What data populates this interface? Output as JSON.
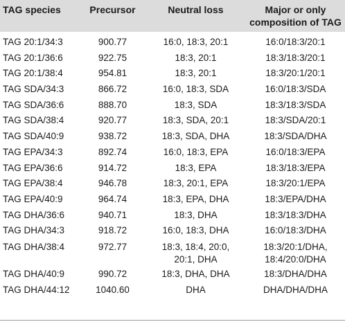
{
  "columns": [
    "TAG species",
    "Precursor",
    "Neutral loss",
    "Major or only composition of TAG"
  ],
  "header_c4_line1": "Major or only",
  "header_c4_line2": "composition of TAG",
  "rows": [
    {
      "species": "TAG 20:1/34:3",
      "precursor": "900.77",
      "loss": "16:0, 18:3, 20:1",
      "composition": "16:0/18:3/20:1"
    },
    {
      "species": "TAG 20:1/36:6",
      "precursor": "922.75",
      "loss": "18:3, 20:1",
      "composition": "18:3/18:3/20:1"
    },
    {
      "species": "TAG 20:1/38:4",
      "precursor": "954.81",
      "loss": "18:3, 20:1",
      "composition": "18:3/20:1/20:1"
    },
    {
      "species": "TAG SDA/34:3",
      "precursor": "866.72",
      "loss": "16:0, 18:3, SDA",
      "composition": "16:0/18:3/SDA"
    },
    {
      "species": "TAG SDA/36:6",
      "precursor": "888.70",
      "loss": "18:3, SDA",
      "composition": "18:3/18:3/SDA"
    },
    {
      "species": "TAG SDA/38:4",
      "precursor": "920.77",
      "loss": "18:3, SDA, 20:1",
      "composition": "18:3/SDA/20:1"
    },
    {
      "species": "TAG SDA/40:9",
      "precursor": "938.72",
      "loss": "18:3, SDA, DHA",
      "composition": "18:3/SDA/DHA"
    },
    {
      "species": "TAG EPA/34:3",
      "precursor": "892.74",
      "loss": "16:0, 18:3, EPA",
      "composition": "16:0/18:3/EPA"
    },
    {
      "species": "TAG EPA/36:6",
      "precursor": "914.72",
      "loss": "18:3, EPA",
      "composition": "18:3/18:3/EPA"
    },
    {
      "species": "TAG EPA/38:4",
      "precursor": "946.78",
      "loss": "18:3, 20:1, EPA",
      "composition": "18:3/20:1/EPA"
    },
    {
      "species": "TAG EPA/40:9",
      "precursor": "964.74",
      "loss": "18:3, EPA, DHA",
      "composition": "18:3/EPA/DHA"
    },
    {
      "species": "TAG DHA/36:6",
      "precursor": "940.71",
      "loss": "18:3, DHA",
      "composition": "18:3/18:3/DHA"
    },
    {
      "species": "TAG DHA/34:3",
      "precursor": "918.72",
      "loss": "16:0, 18:3, DHA",
      "composition": "16:0/18:3/DHA"
    },
    {
      "species": "TAG DHA/38:4",
      "precursor": "972.77",
      "loss": "18:3, 18:4, 20:0, 20:1, DHA",
      "loss_line1": "18:3, 18:4, 20:0,",
      "loss_line2": "20:1, DHA",
      "composition": "18:3/20:1/DHA, 18:4/20:0/DHA",
      "composition_line1": "18:3/20:1/DHA,",
      "composition_line2": "18:4/20:0/DHA"
    },
    {
      "species": "TAG DHA/40:9",
      "precursor": "990.72",
      "loss": "18:3, DHA, DHA",
      "composition": "18:3/DHA/DHA"
    },
    {
      "species": "TAG DHA/44:12",
      "precursor": "1040.60",
      "loss": "DHA",
      "composition": "DHA/DHA/DHA"
    }
  ],
  "colors": {
    "header_bg": "#dcdcdc",
    "rule": "#9a9a9a",
    "text": "#1a1a1a"
  }
}
